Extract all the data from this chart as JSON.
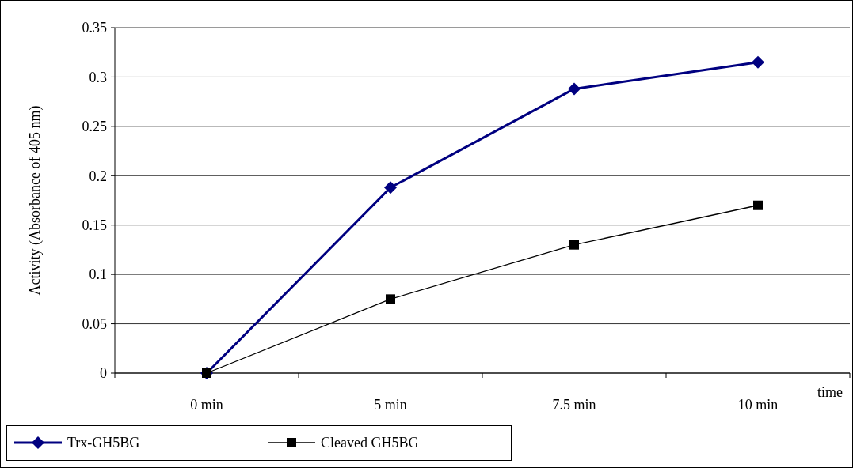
{
  "chart_data": {
    "type": "line",
    "xlabel": "time",
    "ylabel": "Activity (Absorbance of 405 nm)",
    "categories": [
      "0 min",
      "5 min",
      "7.5 min",
      "10 min"
    ],
    "series": [
      {
        "name": "Trx-GH5BG",
        "color": "#000080",
        "marker": "diamond",
        "values": [
          0,
          0.188,
          0.288,
          0.315
        ]
      },
      {
        "name": "Cleaved GH5BG",
        "color": "#000000",
        "marker": "square",
        "values": [
          0,
          0.075,
          0.13,
          0.17
        ]
      }
    ],
    "ylim": [
      0,
      0.35
    ],
    "yticks": [
      0,
      0.05,
      0.1,
      0.15,
      0.2,
      0.25,
      0.3,
      0.35
    ],
    "grid": "y",
    "legend": "bottom left",
    "line_style": "solid"
  }
}
